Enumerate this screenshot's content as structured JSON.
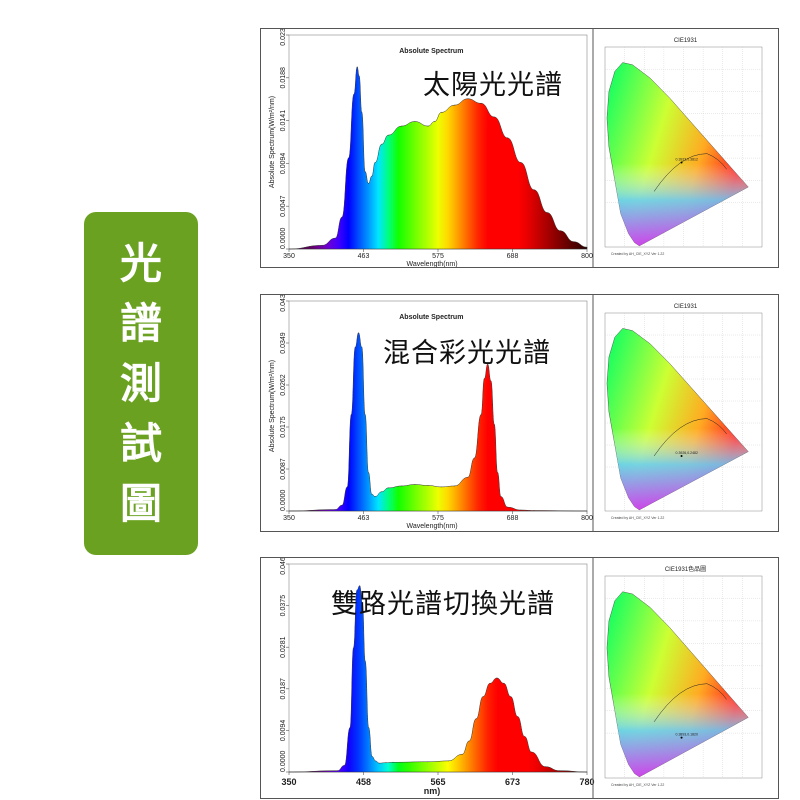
{
  "sidebar": {
    "characters": [
      "光",
      "譜",
      "測",
      "試",
      "圖"
    ],
    "color": "#6aa120"
  },
  "chart_data": [
    {
      "type": "area",
      "title": "Absolute Spectrum",
      "label": "太陽光光譜",
      "xlabel": "Wavelength(nm)",
      "ylabel": "Absolute Spectrum(W/m²/nm)",
      "xlim": [
        350,
        800
      ],
      "x_ticks": [
        "350",
        "463",
        "575",
        "688",
        "800"
      ],
      "ylim": [
        0,
        0.0235
      ],
      "y_ticks": [
        "0.0000",
        "0.0047",
        "0.0094",
        "0.0141",
        "0.0188",
        "0.0235"
      ],
      "x": [
        350,
        400,
        420,
        430,
        440,
        448,
        453,
        456,
        460,
        465,
        470,
        475,
        480,
        490,
        500,
        520,
        540,
        560,
        570,
        580,
        600,
        620,
        640,
        660,
        680,
        700,
        720,
        740,
        760,
        780,
        800
      ],
      "y": [
        0,
        0.0004,
        0.0012,
        0.0035,
        0.01,
        0.017,
        0.02,
        0.019,
        0.015,
        0.0085,
        0.0072,
        0.008,
        0.0095,
        0.0115,
        0.0125,
        0.0135,
        0.014,
        0.0135,
        0.014,
        0.015,
        0.0158,
        0.0165,
        0.016,
        0.0145,
        0.0122,
        0.0095,
        0.0065,
        0.004,
        0.002,
        0.0008,
        0.0002
      ],
      "cie": {
        "title": "CIE1931",
        "point_label": "0.3923,0.3812",
        "point": [
          0.39,
          0.38
        ],
        "footer": "Created by AH_CIE_XYZ Ver 1.22"
      }
    },
    {
      "type": "area",
      "title": "Absolute Spectrum",
      "label": "混合彩光光譜",
      "xlabel": "Wavelength(nm)",
      "ylabel": "Absolute Spectrum(W/m²/nm)",
      "xlim": [
        350,
        800
      ],
      "x_ticks": [
        "350",
        "463",
        "575",
        "688",
        "800"
      ],
      "ylim": [
        0,
        0.0436
      ],
      "y_ticks": [
        "0.0000",
        "0.0087",
        "0.0175",
        "0.0262",
        "0.0349",
        "0.0436"
      ],
      "x": [
        350,
        420,
        430,
        438,
        444,
        450,
        455,
        460,
        465,
        470,
        475,
        480,
        490,
        500,
        520,
        540,
        560,
        580,
        600,
        620,
        630,
        640,
        645,
        650,
        655,
        660,
        665,
        670,
        680,
        700,
        720,
        800
      ],
      "y": [
        0,
        0.0003,
        0.0012,
        0.005,
        0.02,
        0.034,
        0.037,
        0.034,
        0.02,
        0.008,
        0.0035,
        0.003,
        0.004,
        0.0048,
        0.0052,
        0.0055,
        0.0053,
        0.005,
        0.0052,
        0.007,
        0.011,
        0.02,
        0.0275,
        0.0305,
        0.027,
        0.018,
        0.008,
        0.003,
        0.0008,
        0.0002,
        0.0001,
        0
      ],
      "cie": {
        "title": "CIE1931",
        "point_label": "0.3926,0.2482",
        "point": [
          0.39,
          0.25
        ],
        "footer": "Created by AH_CIE_XYZ Ver 1.22"
      }
    },
    {
      "type": "area",
      "title": "",
      "label": "雙路光譜切換光譜",
      "xlabel": "nm)",
      "ylabel": "",
      "xlim": [
        350,
        780
      ],
      "x_ticks": [
        "350",
        "458",
        "565",
        "673",
        "780"
      ],
      "ylim": [
        0,
        0.0469
      ],
      "y_ticks": [
        "0.0000",
        "0.0094",
        "0.0187",
        "0.0281",
        "0.0375",
        "0.0469"
      ],
      "x": [
        350,
        420,
        430,
        438,
        443,
        448,
        452,
        456,
        460,
        465,
        470,
        475,
        480,
        490,
        500,
        550,
        580,
        600,
        610,
        620,
        630,
        640,
        650,
        660,
        670,
        680,
        690,
        700,
        720,
        740,
        780
      ],
      "y": [
        0,
        0.0003,
        0.0015,
        0.01,
        0.028,
        0.041,
        0.042,
        0.038,
        0.025,
        0.01,
        0.0035,
        0.0025,
        0.002,
        0.0021,
        0.0022,
        0.0023,
        0.0025,
        0.004,
        0.007,
        0.012,
        0.017,
        0.02,
        0.0212,
        0.02,
        0.017,
        0.0125,
        0.008,
        0.0045,
        0.0012,
        0.0003,
        0
      ],
      "cie": {
        "title": "CIE1931色品圖",
        "point_label": "0.3893,0.1820",
        "point": [
          0.39,
          0.18
        ],
        "footer": "Created by AH_CIE_XYZ Ver 1.22"
      }
    }
  ]
}
